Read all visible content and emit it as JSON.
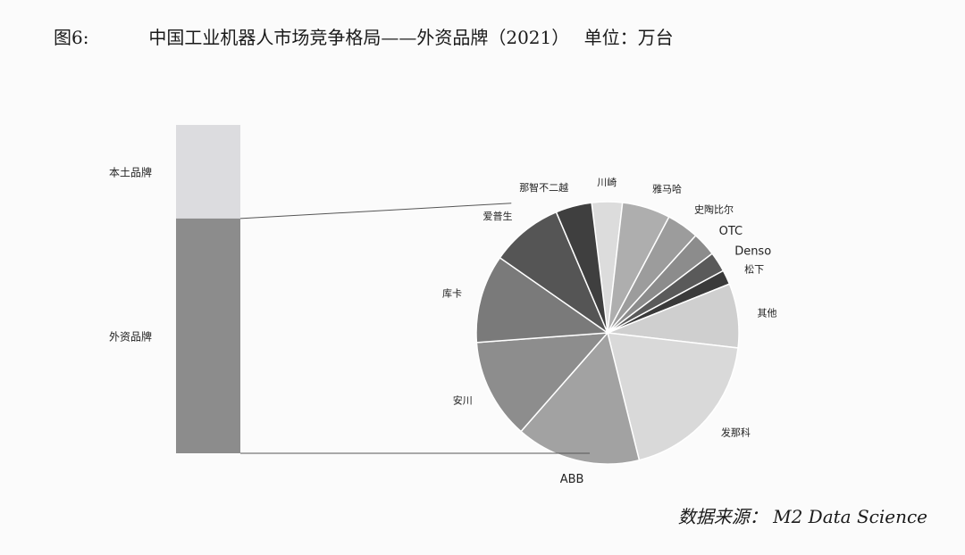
{
  "figure": {
    "number": "图6:",
    "title": "中国工业机器人市场竞争格局——外资品牌（2021）",
    "unit": "单位：万台",
    "source": "数据来源： M2 Data Science"
  },
  "chart_data": [
    {
      "type": "bar",
      "stacked": true,
      "categories": [
        "本土品牌",
        "外资品牌"
      ],
      "values": [
        28.5,
        71.5
      ],
      "colors": {
        "本土品牌": "#dcdcdf",
        "外资品牌": "#8c8c8c"
      }
    },
    {
      "type": "pie",
      "labels": [
        "川崎",
        "雅马哈",
        "史陶比尔",
        "OTC",
        "Denso",
        "松下",
        "其他",
        "发那科",
        "ABB",
        "安川",
        "库卡",
        "爱普生",
        "那智不二越"
      ],
      "values": [
        3.8,
        6.0,
        4.0,
        3.0,
        2.5,
        1.8,
        8.0,
        19.5,
        15.5,
        12.5,
        11.0,
        9.0,
        4.5
      ],
      "colors": [
        "#dcdcdc",
        "#aeaeae",
        "#9c9c9c",
        "#8c8c8c",
        "#5a5a5a",
        "#3a3a3a",
        "#cfcfcf",
        "#d9d9d9",
        "#a2a2a2",
        "#8d8d8d",
        "#7a7a7a",
        "#555555",
        "#3f3f3f"
      ]
    }
  ]
}
